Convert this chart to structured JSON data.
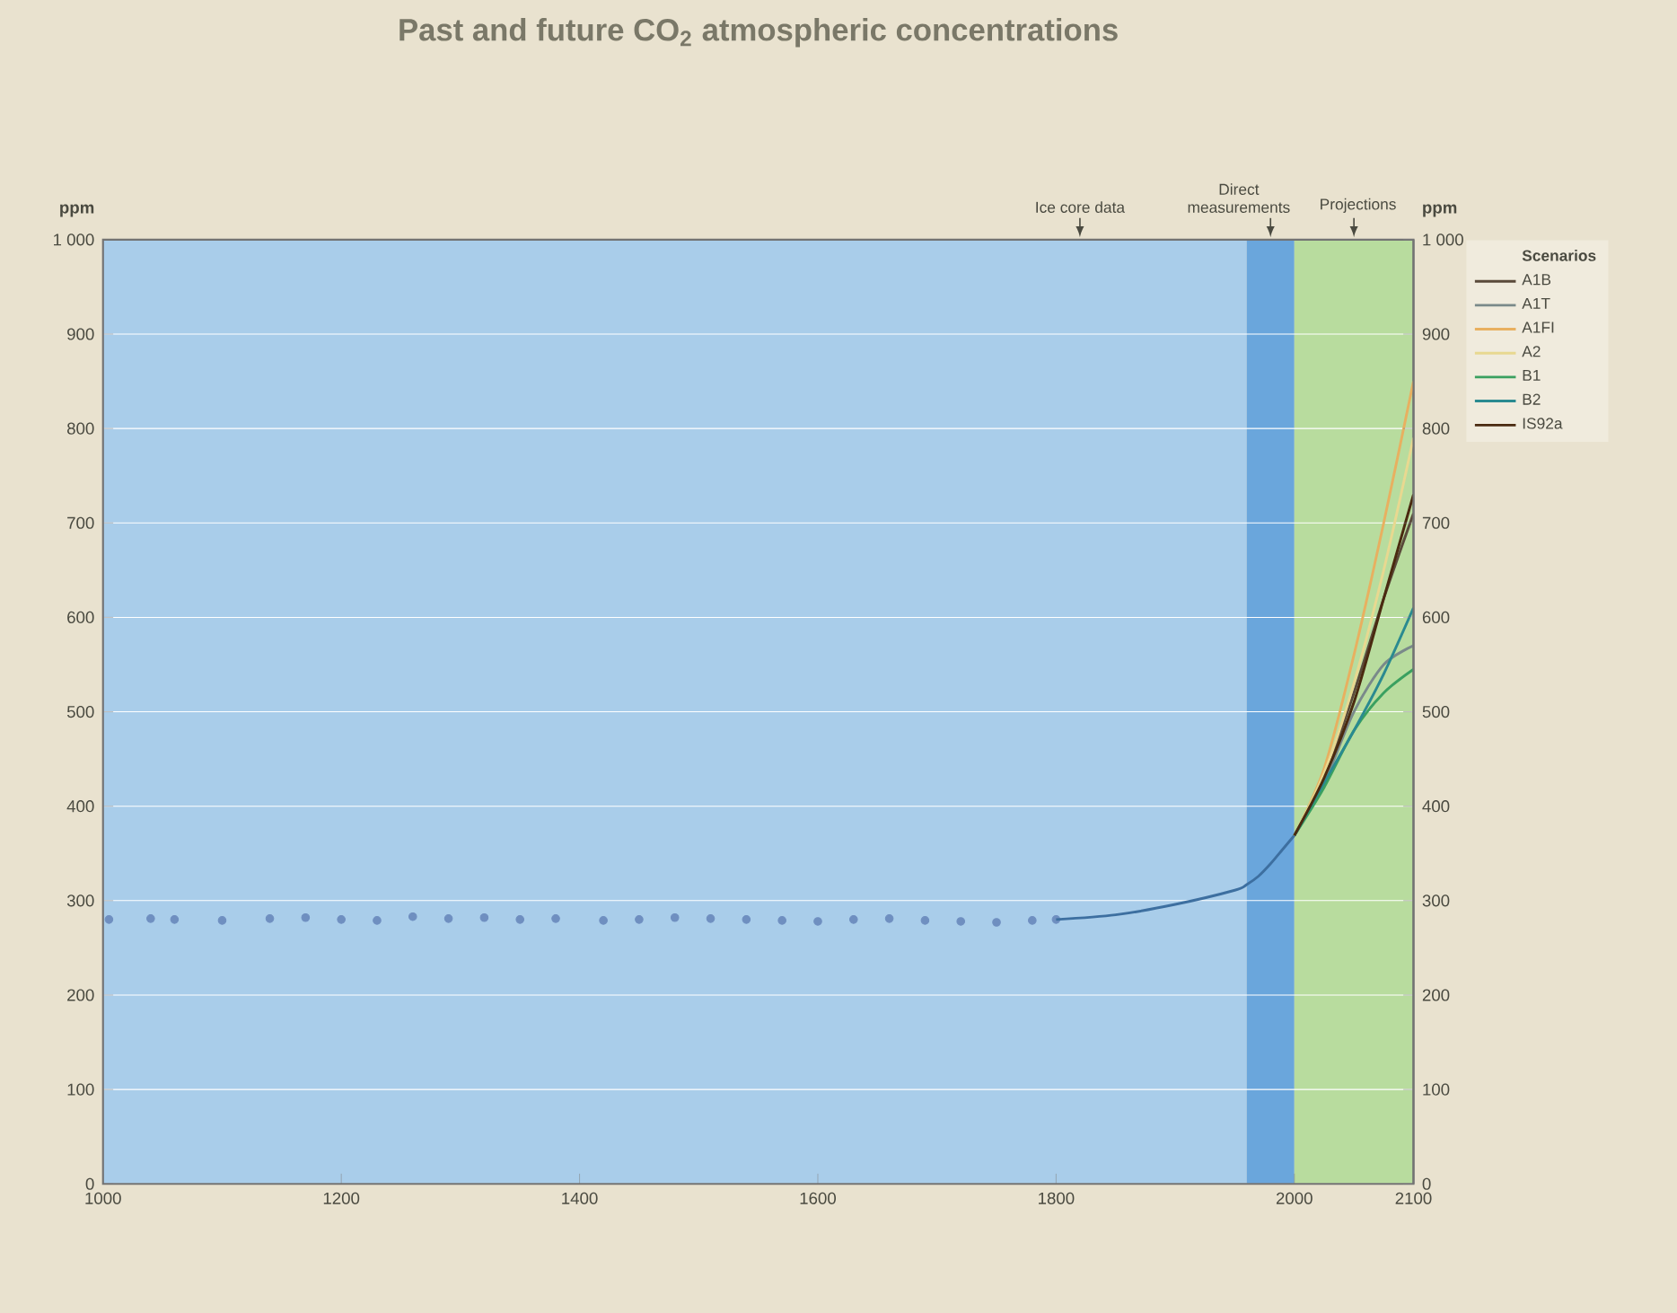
{
  "chart_data": {
    "type": "line",
    "title": "Past and future CO$_{2}$ atmospheric concentrations",
    "ylabel": "ppm",
    "y2label": "ppm",
    "legend_title": "Scenarios",
    "legend": "right",
    "grid": "y",
    "xlim": [
      1000,
      2100
    ],
    "xticks": [
      1000,
      1200,
      1400,
      1600,
      1800,
      2000,
      2100
    ],
    "ylim": [
      0,
      1000
    ],
    "yticks": [
      0,
      100,
      200,
      300,
      400,
      500,
      600,
      700,
      800,
      900,
      {
        "value": 1000,
        "label": "1 000"
      }
    ],
    "y2lim": [
      0,
      1000
    ],
    "y2ticks": [
      0,
      100,
      200,
      300,
      400,
      500,
      600,
      700,
      800,
      900,
      {
        "value": 1000,
        "label": "1 000"
      }
    ],
    "bands": [
      {
        "axis": "x",
        "from": 1000,
        "to": 1960,
        "label": "Ice core data",
        "color": "#a9cdea"
      },
      {
        "axis": "x",
        "from": 1960,
        "to": 2000,
        "label": "Direct measurements",
        "color": "#6aa6dc"
      },
      {
        "axis": "x",
        "from": 2000,
        "to": 2100,
        "label": "Projections",
        "color": "#b8dc9e"
      }
    ],
    "series": [
      {
        "type": "scatter",
        "color": "#6f8fc0",
        "x": [
          1005,
          1040,
          1060,
          1100,
          1140,
          1170,
          1200,
          1230,
          1260,
          1290,
          1320,
          1350,
          1380,
          1420,
          1450,
          1480,
          1510,
          1540,
          1570,
          1600,
          1630,
          1660,
          1690,
          1720,
          1750,
          1780,
          1800
        ],
        "values": [
          280,
          281,
          280,
          279,
          281,
          282,
          280,
          279,
          283,
          281,
          282,
          280,
          281,
          279,
          280,
          282,
          281,
          280,
          279,
          278,
          280,
          281,
          279,
          278,
          277,
          279,
          280
        ]
      },
      {
        "type": "line",
        "color": "#3d6fa0",
        "x": [
          1800,
          1850,
          1900,
          1950,
          1960,
          1970,
          1980,
          1990,
          2000
        ],
        "values": [
          280,
          285,
          296,
          311,
          317,
          326,
          339,
          354,
          369
        ]
      },
      {
        "name": "A1B",
        "color": "#5a4a3a",
        "x": [
          2000,
          2025,
          2050,
          2075,
          2100
        ],
        "values": [
          369,
          430,
          520,
          620,
          710
        ]
      },
      {
        "name": "A1T",
        "color": "#7a8a8a",
        "x": [
          2000,
          2025,
          2050,
          2075,
          2100
        ],
        "values": [
          369,
          425,
          500,
          550,
          570
        ]
      },
      {
        "name": "A1FI",
        "color": "#e8b060",
        "x": [
          2000,
          2025,
          2050,
          2075,
          2100
        ],
        "values": [
          369,
          440,
          560,
          700,
          850
        ]
      },
      {
        "name": "A2",
        "color": "#e8d890",
        "x": [
          2000,
          2025,
          2050,
          2075,
          2100
        ],
        "values": [
          369,
          435,
          530,
          650,
          790
        ]
      },
      {
        "name": "B1",
        "color": "#3aa060",
        "x": [
          2000,
          2025,
          2050,
          2075,
          2100
        ],
        "values": [
          369,
          420,
          480,
          520,
          545
        ]
      },
      {
        "name": "B2",
        "color": "#2a8a90",
        "x": [
          2000,
          2025,
          2050,
          2075,
          2100
        ],
        "values": [
          369,
          425,
          480,
          540,
          610
        ]
      },
      {
        "name": "IS92a",
        "color": "#4a2a10",
        "x": [
          2000,
          2025,
          2050,
          2075,
          2100
        ],
        "values": [
          369,
          430,
          510,
          620,
          730
        ]
      }
    ]
  }
}
